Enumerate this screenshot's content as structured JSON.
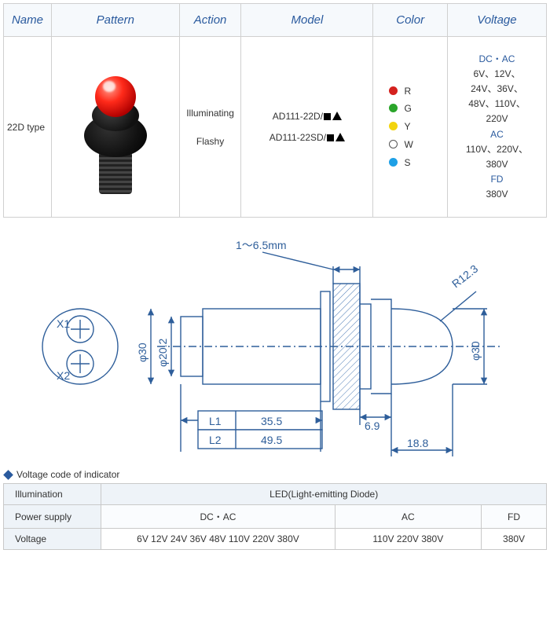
{
  "spec_table": {
    "headers": [
      "Name",
      "Pattern",
      "Action",
      "Model",
      "Color",
      "Voltage"
    ],
    "row": {
      "name": "22D type",
      "actions": [
        "Illuminating",
        "Flashy"
      ],
      "models": [
        "AD111-22D/",
        "AD111-22SD/"
      ],
      "colors": [
        {
          "code": "R",
          "fill": "#d4211e",
          "outline": false
        },
        {
          "code": "G",
          "fill": "#2aa52a",
          "outline": false
        },
        {
          "code": "Y",
          "fill": "#f2d40e",
          "outline": false
        },
        {
          "code": "W",
          "fill": "#ffffff",
          "outline": true
        },
        {
          "code": "S",
          "fill": "#1ea0e6",
          "outline": false
        }
      ],
      "voltage": {
        "groups": [
          {
            "head": "DC・AC",
            "lines": [
              "6V、12V、",
              "24V、36V、",
              "48V、110V、",
              "220V"
            ]
          },
          {
            "head": "AC",
            "lines": [
              "110V、220V、",
              "380V"
            ]
          },
          {
            "head": "FD",
            "lines": [
              "380V"
            ]
          }
        ]
      }
    },
    "header_bg": "#f6f9fc",
    "header_color": "#2a5a9e",
    "border_color": "#d0d0d0"
  },
  "drawing": {
    "top_dim": "1～6.5mm",
    "L1_label": "L1",
    "L1_val": "35.5",
    "L2_label": "L2",
    "L2_val": "49.5",
    "d20_2": "φ20.2",
    "d30_left": "φ30",
    "d30_right": "φ30",
    "r12_3": "R12.3",
    "dim_6_9": "6.9",
    "dim_18_8": "18.8",
    "term_x1": "X1",
    "term_x2": "X2",
    "line_color": "#2e5e9a",
    "hatch_color": "#4a7ab5"
  },
  "section_title": "Voltage code of indicator",
  "voltage_table": {
    "illum_label": "Illumination",
    "illum_value": "LED(Light-emitting Diode)",
    "ps_label": "Power supply",
    "ps_values": [
      "DC・AC",
      "AC",
      "FD"
    ],
    "v_label": "Voltage",
    "v_values": [
      "6V  12V  24V  36V  48V  110V  220V  380V",
      "110V  220V  380V",
      "380V"
    ],
    "col_widths_pct": [
      46,
      34,
      20
    ]
  }
}
